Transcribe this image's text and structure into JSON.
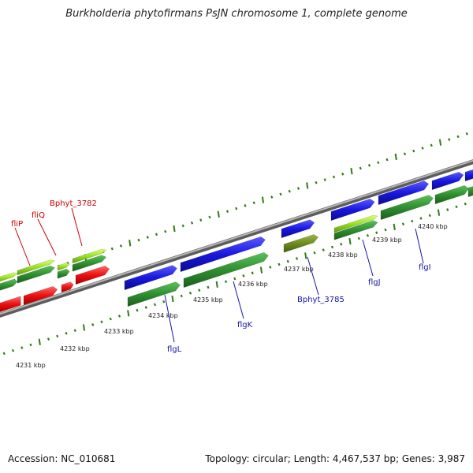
{
  "title": "Burkholderia phytofirmans PsJN chromosome 1, complete genome",
  "footer": {
    "accession": "Accession: NC_010681",
    "summary": "Topology: circular; Length: 4,467,537 bp; Genes: 3,987"
  },
  "colors": {
    "backbone": "#8a8a8a",
    "tick": "#2e7d14",
    "forward_gene": "#1818e0",
    "reverse_gene": "#ee1010",
    "cds": "#2f8f2f",
    "pseudo_or_rna": "#98e020",
    "olive_gene": "#6e8c1e",
    "label_red": "#cc0000",
    "label_blue": "#1414a8"
  },
  "scale_labels": [
    "4231 kbp",
    "4232 kbp",
    "4233 kbp",
    "4234 kbp",
    "4235 kbp",
    "4236 kbp",
    "4237 kbp",
    "4238 kbp",
    "4239 kbp",
    "4240 kbp"
  ],
  "gene_labels": [
    {
      "text": "fliP",
      "color": "red"
    },
    {
      "text": "fliQ",
      "color": "red"
    },
    {
      "text": "Bphyt_3782",
      "color": "red"
    },
    {
      "text": "flgL",
      "color": "blue"
    },
    {
      "text": "flgK",
      "color": "blue"
    },
    {
      "text": "Bphyt_3785",
      "color": "blue"
    },
    {
      "text": "flgJ",
      "color": "blue"
    },
    {
      "text": "flgI",
      "color": "blue"
    }
  ]
}
